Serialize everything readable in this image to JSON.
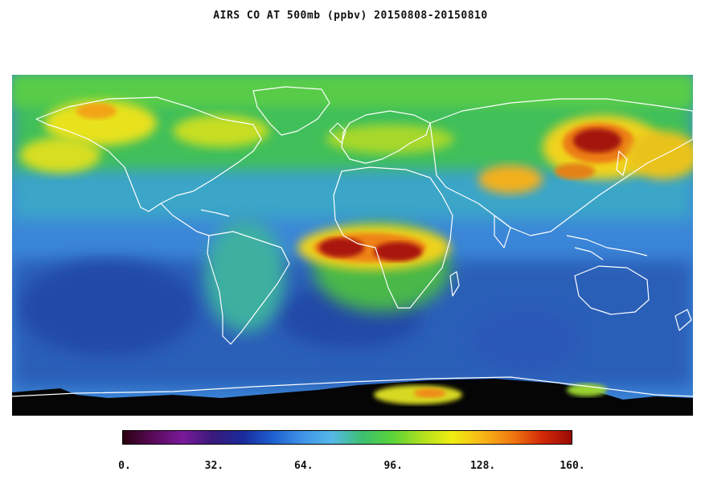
{
  "title": "AIRS CO AT 500mb (ppbv) 20150808-20150810",
  "colorbar": {
    "ticks": [
      "0.",
      "32.",
      "64.",
      "96.",
      "128.",
      "160."
    ],
    "stops": [
      "#2a0010",
      "#5a0a5a",
      "#7a1a9a",
      "#3a1a7a",
      "#1a2a9a",
      "#1e5fd0",
      "#3f94e6",
      "#55b8e8",
      "#3cc070",
      "#5ad23a",
      "#aee020",
      "#f0ee10",
      "#f8b818",
      "#f07a10",
      "#d42a08",
      "#9a0a04"
    ]
  },
  "colors": {
    "ocean": "#2f74c9",
    "land": "#4dba3f",
    "coastline": "#ffffff",
    "no_data": "#000000"
  }
}
